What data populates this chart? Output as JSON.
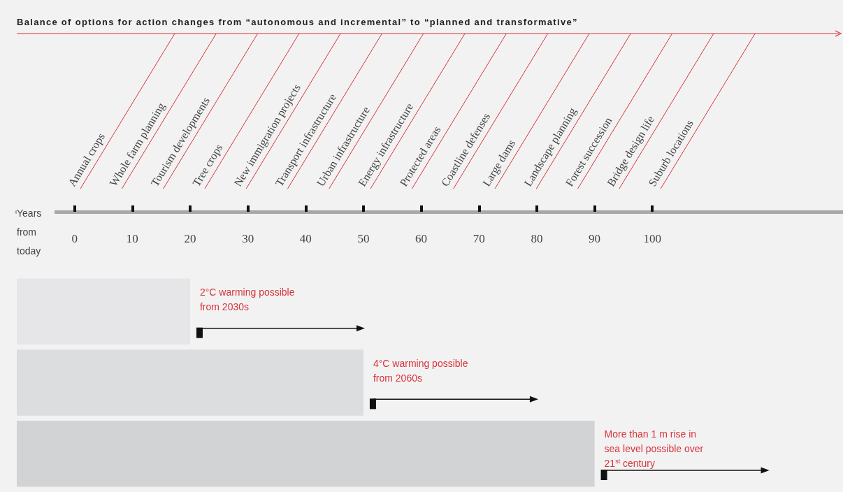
{
  "chart_data": {
    "type": "bar",
    "orientation": "horizontal",
    "title": "Balance of options for action changes from “autonomous and incremental” to “planned and transformative”",
    "xlabel": "Years from today",
    "categories": [
      null,
      null,
      null
    ],
    "base": [
      -10,
      -10,
      -10
    ],
    "values": [
      30,
      60,
      100
    ],
    "colors": [
      "#e6e6e8",
      "#dcdddf",
      "#d2d3d5"
    ],
    "xlim": [
      -10,
      133
    ],
    "xticks": [
      0,
      10,
      20,
      30,
      40,
      50,
      60,
      70,
      80,
      90,
      100
    ],
    "annotations": [
      "2°C warming possible\nfrom 2030s",
      "4°C warming possible\nfrom 2060s",
      "More than 1 m rise in\nsea level possible over\n21$^{st}$ century",
      "Annual crops",
      "Whole farm planning",
      "Tourism developments",
      "Tree crops",
      "New immigration projects",
      "Transport infrastructure",
      "Urban infrastructure",
      "Energy infrastructure",
      "Protected areas",
      "Coastline defenses",
      "Large dams",
      "Landscape planning",
      "Forest succession",
      "Bridge design life",
      "Suburb locations"
    ]
  }
}
